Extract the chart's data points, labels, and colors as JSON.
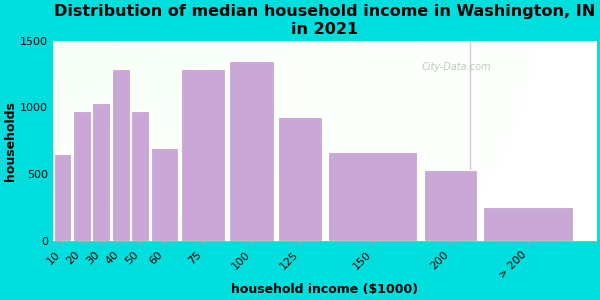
{
  "title": "Distribution of median household income in Washington, IN\nin 2021",
  "xlabel": "household income ($1000)",
  "ylabel": "households",
  "bar_labels": [
    "10",
    "20",
    "30",
    "40",
    "50",
    "60",
    "75",
    "100",
    "125",
    "150",
    "200",
    "> 200"
  ],
  "bar_lefts": [
    10,
    20,
    30,
    40,
    50,
    60,
    75,
    100,
    125,
    150,
    200,
    230
  ],
  "bar_widths": [
    10,
    10,
    10,
    10,
    10,
    15,
    25,
    25,
    25,
    50,
    30,
    50
  ],
  "bar_values": [
    650,
    975,
    1030,
    1290,
    975,
    700,
    1290,
    1350,
    930,
    670,
    530,
    260
  ],
  "bar_color": "#c9a8d8",
  "bar_edgecolor": "#ffffff",
  "background_outer": "#00dede",
  "background_inner": "#edfaed",
  "ylim": [
    0,
    1500
  ],
  "yticks": [
    0,
    500,
    1000,
    1500
  ],
  "xlim": [
    10,
    290
  ],
  "title_fontsize": 11.5,
  "axis_label_fontsize": 9,
  "tick_fontsize": 8,
  "watermark": "City-Data.com",
  "separator_x": 225
}
